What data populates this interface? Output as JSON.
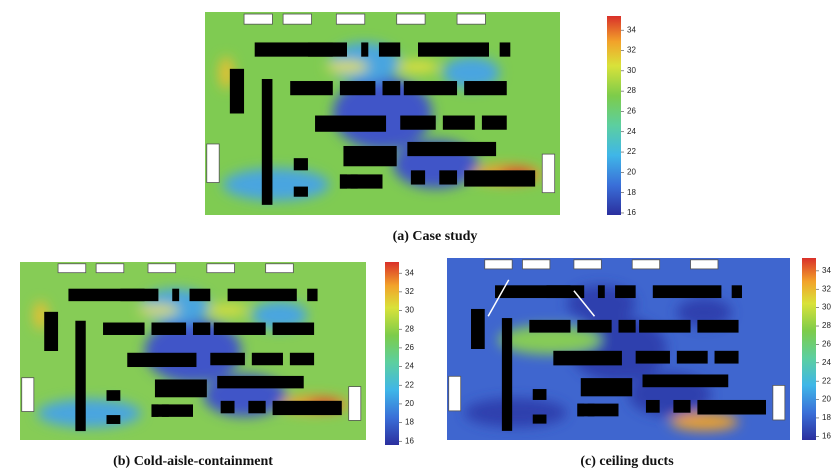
{
  "chart_data": [
    {
      "type": "heatmap",
      "title": "(a)  Case study",
      "clim": [
        15.8,
        35.4
      ],
      "cticks": [
        16,
        18,
        20,
        22,
        24,
        26,
        28,
        30,
        32,
        34
      ]
    },
    {
      "type": "heatmap",
      "title": "(b)  Cold-aisle-containment",
      "clim": [
        15.6,
        35.2
      ],
      "cticks": [
        16,
        18,
        20,
        22,
        24,
        26,
        28,
        30,
        32,
        34
      ]
    },
    {
      "type": "heatmap",
      "title": "(c) ceiling ducts",
      "clim": [
        15.6,
        35.4
      ],
      "cticks": [
        16,
        18,
        20,
        22,
        24,
        26,
        28,
        30,
        32,
        34
      ]
    }
  ]
}
